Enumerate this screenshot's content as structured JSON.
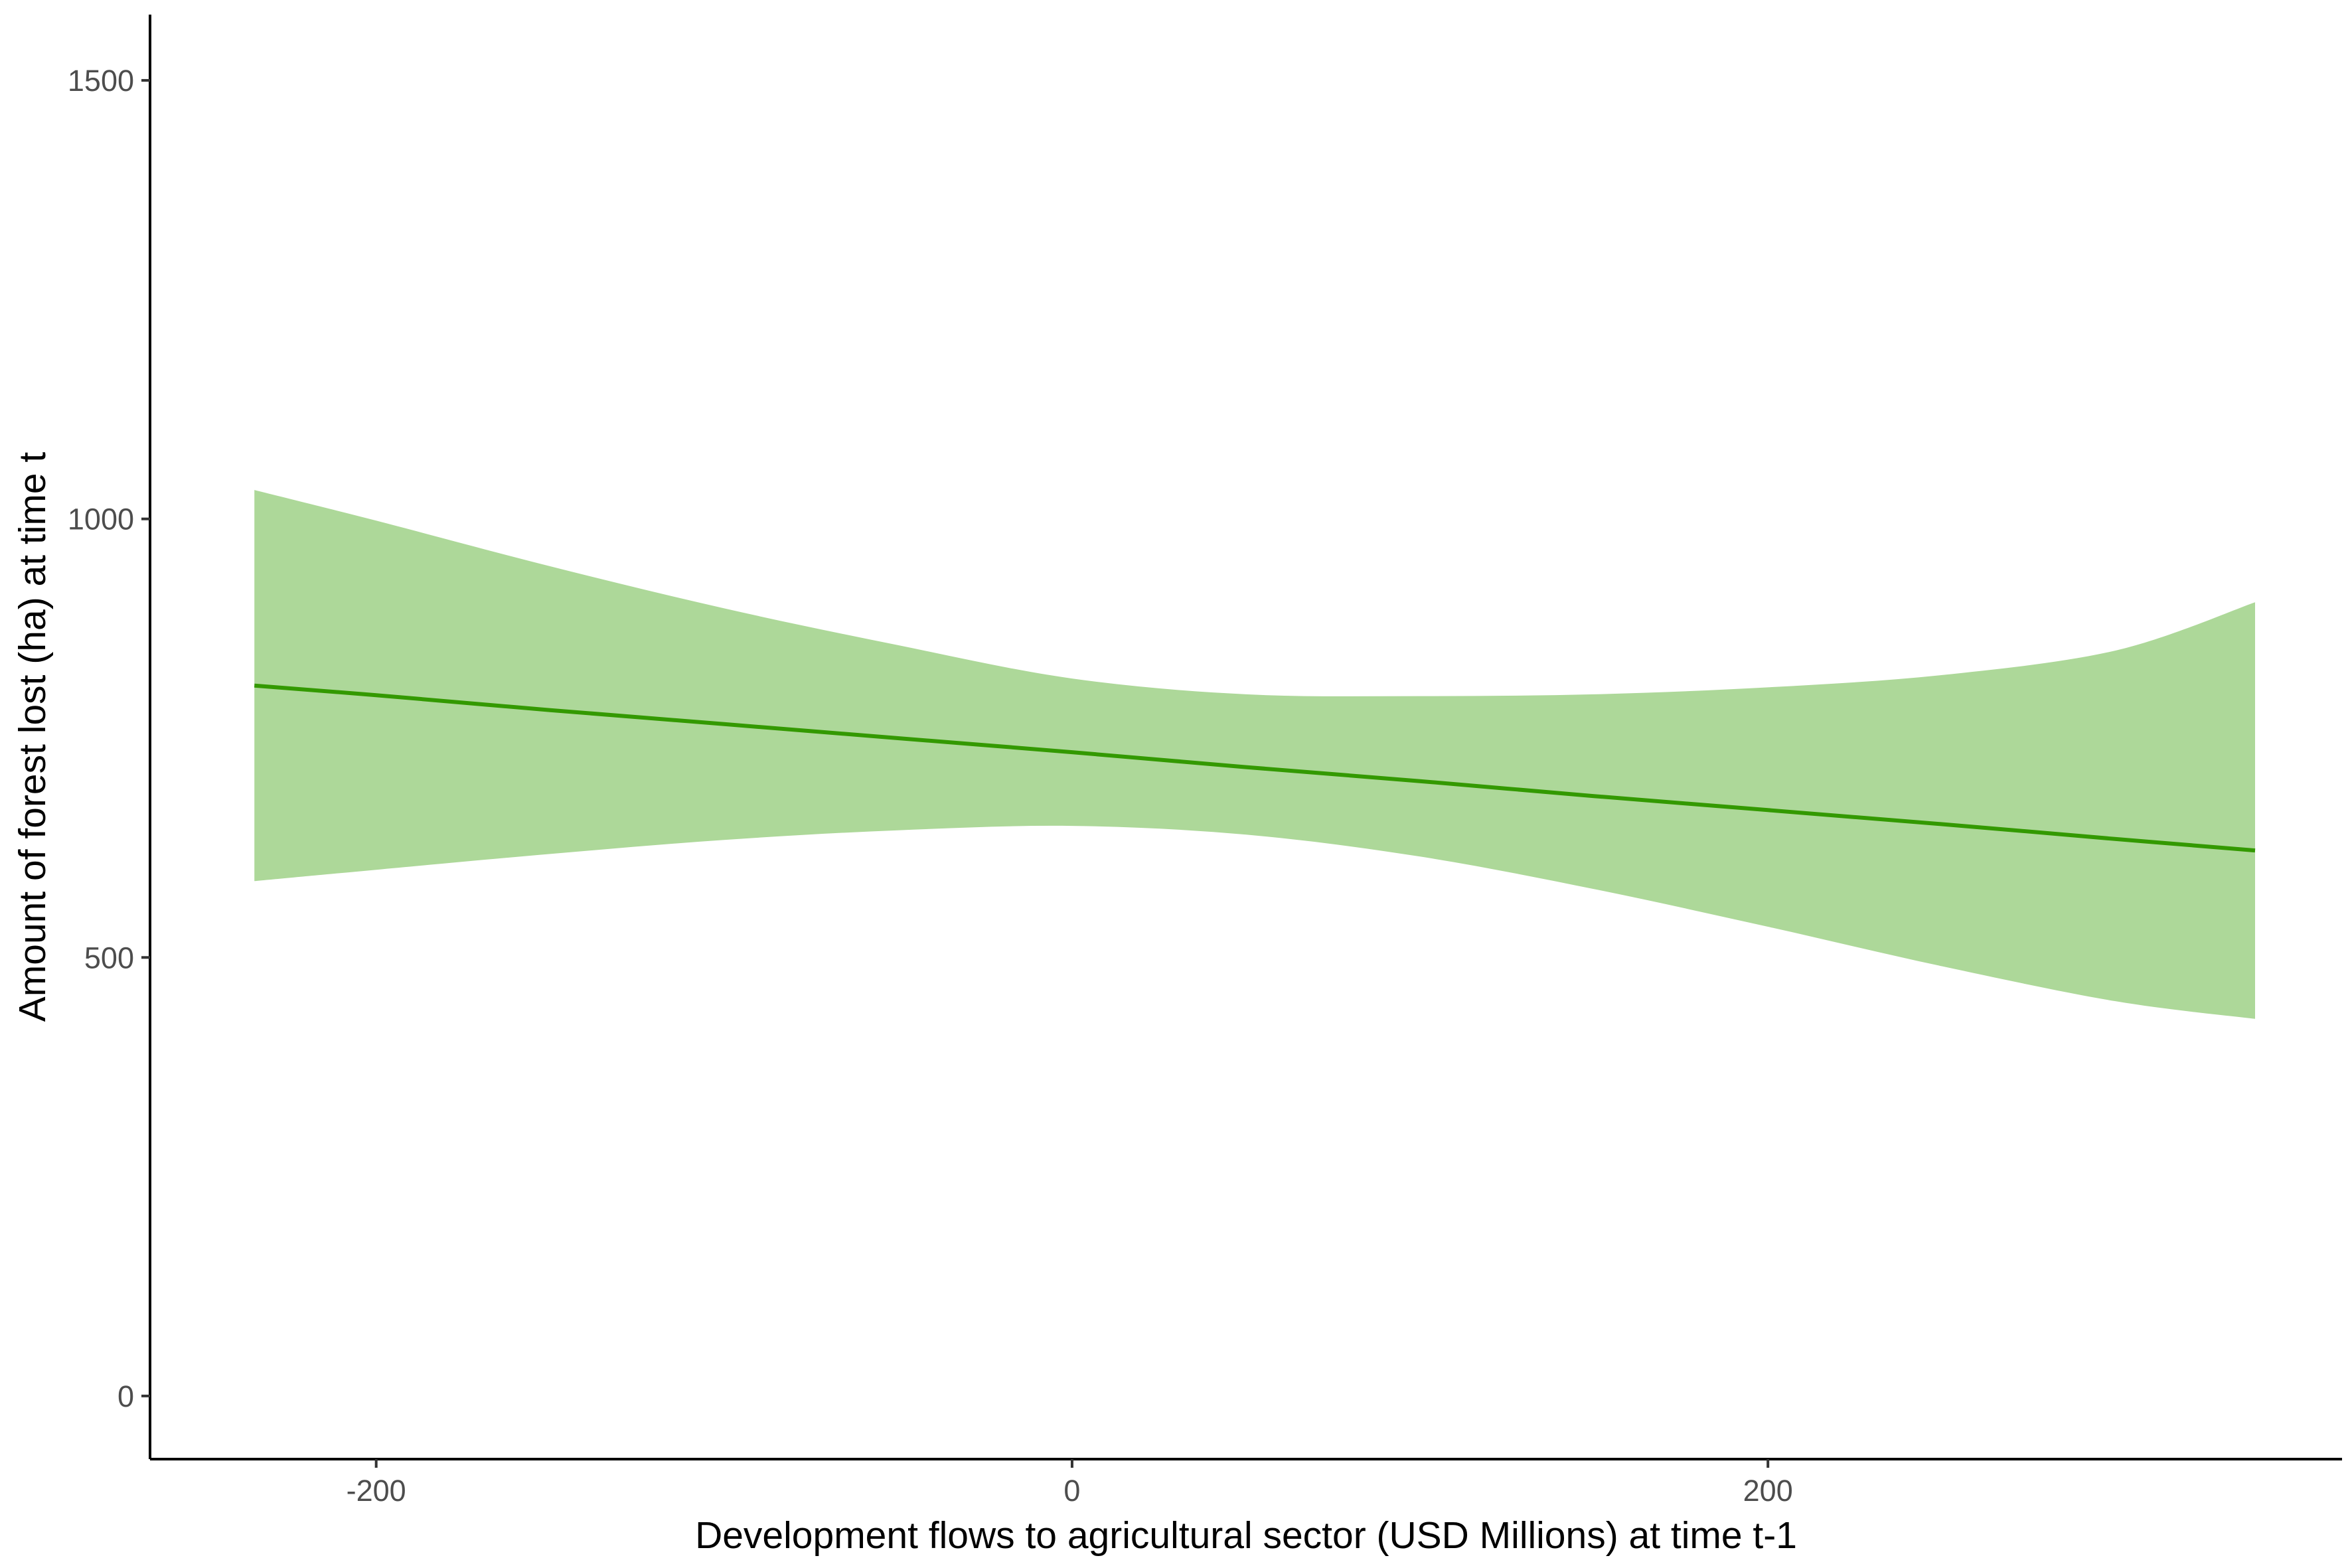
{
  "chart_data": {
    "type": "line",
    "title": "",
    "xlabel": "Development flows to agricultural sector (USD Millions) at time t-1",
    "ylabel": "Amount of forest lost (ha) at time t",
    "xlim": [
      -265,
      365
    ],
    "ylim": [
      -72,
      1575
    ],
    "x_ticks": [
      -200,
      0,
      200
    ],
    "y_ticks": [
      0,
      500,
      1000,
      1500
    ],
    "x_tick_labels": [
      "-200",
      "0",
      "200"
    ],
    "y_tick_labels": [
      "0",
      "500",
      "1000",
      "1500"
    ],
    "grid": false,
    "legend": "none",
    "colors": {
      "line": "#339900",
      "band": "#add899",
      "axis": "#000000",
      "tick_text": "#4d4d4d"
    },
    "series": [
      {
        "type": "line",
        "x": [
          -235,
          -200,
          -150,
          -100,
          -50,
          0,
          50,
          100,
          150,
          200,
          250,
          300,
          340
        ],
        "y": [
          810,
          799,
          782,
          766,
          750,
          734,
          717,
          701,
          684,
          668,
          652,
          635,
          622
        ]
      },
      {
        "type": "band",
        "x": [
          -235,
          -200,
          -150,
          -100,
          -50,
          0,
          50,
          100,
          150,
          200,
          250,
          300,
          340
        ],
        "lower": [
          587,
          600,
          618,
          634,
          645,
          650,
          640,
          615,
          578,
          535,
          490,
          450,
          430
        ],
        "upper": [
          1033,
          998,
          946,
          898,
          856,
          818,
          800,
          798,
          800,
          808,
          822,
          850,
          905
        ]
      }
    ]
  }
}
